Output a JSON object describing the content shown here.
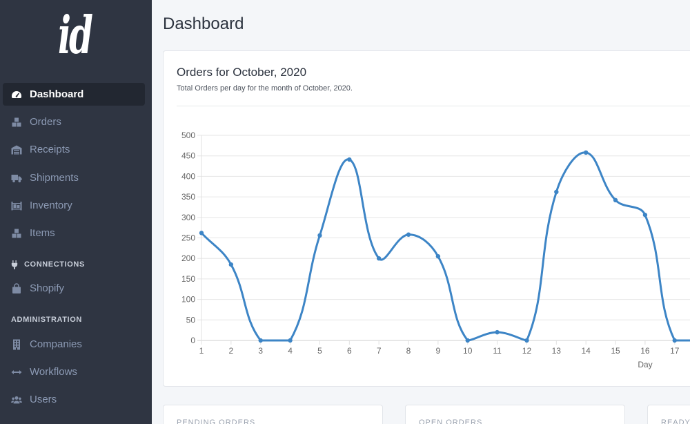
{
  "app": {
    "logo": "id"
  },
  "colors": {
    "sidebar_bg": "#2f3542",
    "sidebar_active_bg": "#222731",
    "sidebar_text": "#8c9ab4",
    "main_bg": "#f4f6f9",
    "accent": "#3d85c6"
  },
  "sidebar": {
    "nav": [
      {
        "label": "Dashboard",
        "icon": "tachometer-icon",
        "active": true
      },
      {
        "label": "Orders",
        "icon": "boxes-icon"
      },
      {
        "label": "Receipts",
        "icon": "warehouse-icon"
      },
      {
        "label": "Shipments",
        "icon": "truck-icon"
      },
      {
        "label": "Inventory",
        "icon": "pallet-icon"
      },
      {
        "label": "Items",
        "icon": "boxes-icon"
      }
    ],
    "connections": {
      "heading": "CONNECTIONS",
      "icon": "plug-icon",
      "items": [
        {
          "label": "Shopify",
          "icon": "shopping-bag-icon"
        }
      ]
    },
    "administration": {
      "heading": "ADMINISTRATION",
      "items": [
        {
          "label": "Companies",
          "icon": "building-icon"
        },
        {
          "label": "Workflows",
          "icon": "arrows-horizontal-icon"
        },
        {
          "label": "Users",
          "icon": "users-icon"
        }
      ]
    }
  },
  "main": {
    "page_title": "Dashboard",
    "stat_cards": [
      {
        "label": "PENDING ORDERS"
      },
      {
        "label": "OPEN ORDERS"
      },
      {
        "label": "READY"
      }
    ]
  },
  "chart_data": {
    "type": "line",
    "title": "Orders for October, 2020",
    "subtitle": "Total Orders per day for the month of October, 2020.",
    "xlabel": "Day",
    "categories": [
      "1",
      "2",
      "3",
      "4",
      "5",
      "6",
      "7",
      "8",
      "9",
      "10",
      "11",
      "12",
      "13",
      "14",
      "15",
      "16",
      "17"
    ],
    "series": [
      {
        "values": [
          262,
          185,
          0,
          0,
          256,
          441,
          200,
          258,
          205,
          0,
          20,
          0,
          362,
          458,
          342,
          306,
          0
        ]
      }
    ],
    "ylim": [
      0,
      500
    ],
    "y_ticks": [
      0,
      50,
      100,
      150,
      200,
      250,
      300,
      350,
      400,
      450,
      500
    ],
    "grid": true,
    "color": "#3d85c6"
  }
}
